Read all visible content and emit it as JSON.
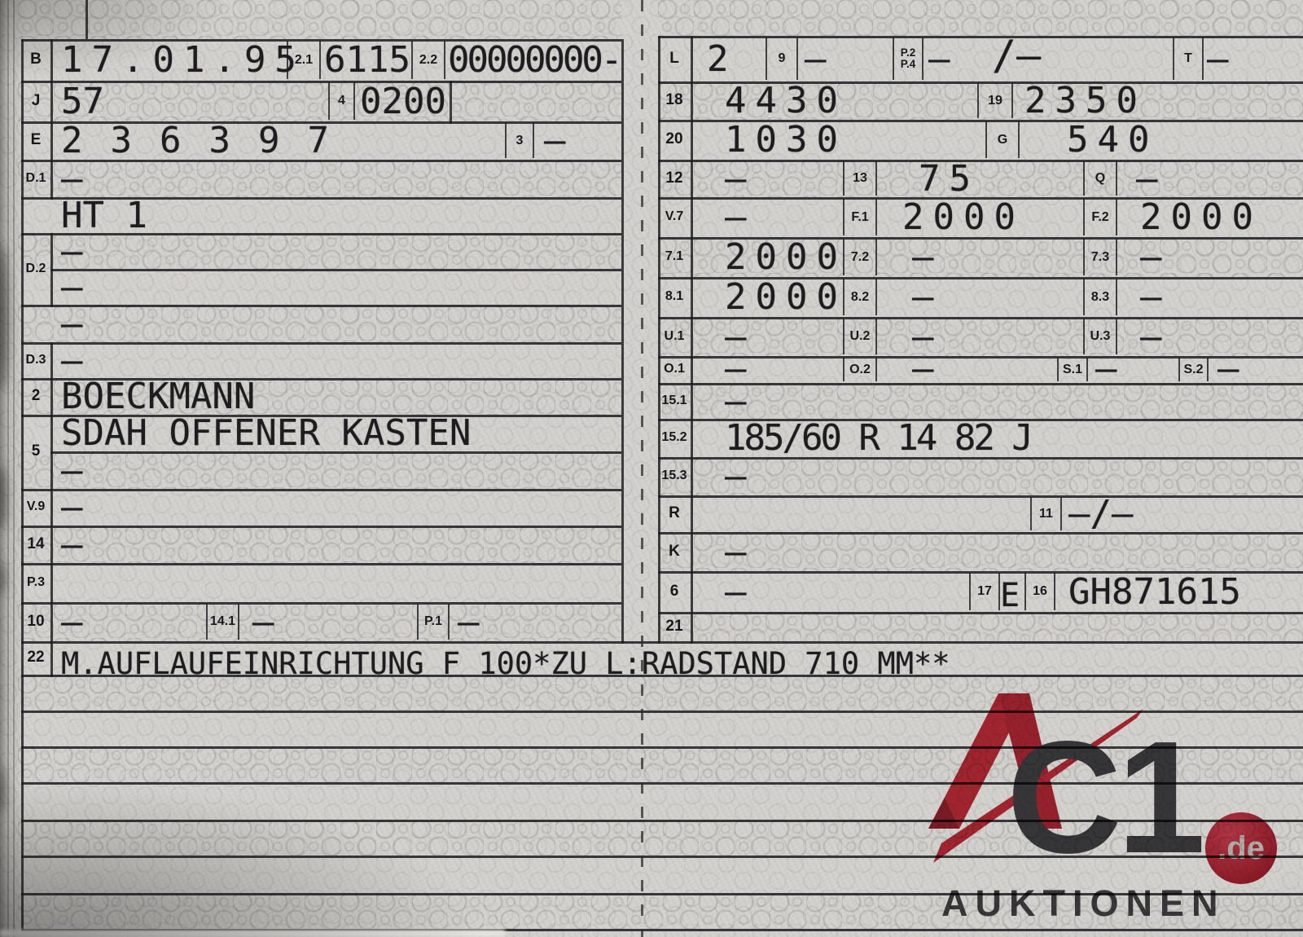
{
  "left": {
    "b": {
      "label": "B",
      "value": "17.01.95"
    },
    "f2_1": {
      "label": "2.1",
      "value": "6115"
    },
    "f2_2": {
      "label": "2.2",
      "value": "00000000-"
    },
    "j": {
      "label": "J",
      "value": "57"
    },
    "f4": {
      "label": "4",
      "value": "0200"
    },
    "e": {
      "label": "E",
      "value": "236397"
    },
    "f3": {
      "label": "3",
      "value": "—"
    },
    "d1": {
      "label": "D.1",
      "value": "—"
    },
    "ht": {
      "value": "HT 1"
    },
    "d2": {
      "label": "D.2",
      "value_row1": "—",
      "value_row2": "—"
    },
    "extra_dash": {
      "value": "—"
    },
    "d3": {
      "label": "D.3",
      "value": "—"
    },
    "f2": {
      "label": "2",
      "value": "BOECKMANN"
    },
    "f5": {
      "label": "5",
      "value_row1": "SDAH OFFENER KASTEN",
      "value_row2": "—"
    },
    "v9": {
      "label": "V.9",
      "value": "—"
    },
    "f14": {
      "label": "14",
      "value": "—"
    },
    "p3": {
      "label": "P.3",
      "value": ""
    },
    "f10": {
      "label": "10",
      "value": "—"
    },
    "f14_1": {
      "label": "14.1",
      "value": "—"
    },
    "p1": {
      "label": "P.1",
      "value": "—"
    },
    "f22": {
      "label": "22",
      "value": "M.AUFLAUFEINRICHTUNG F 100*ZU L:RADSTAND 710 MM**"
    }
  },
  "right": {
    "l": {
      "label": "L",
      "value": "2"
    },
    "f9": {
      "label": "9",
      "value": "—"
    },
    "p2p4": {
      "label_top": "P.2",
      "label_bottom": "P.4",
      "value": "—",
      "extra": "/—"
    },
    "t": {
      "label": "T",
      "value": "—"
    },
    "f18": {
      "label": "18",
      "value": "4430"
    },
    "f19": {
      "label": "19",
      "value": "2350"
    },
    "f20": {
      "label": "20",
      "value": "1030"
    },
    "g": {
      "label": "G",
      "value": "540"
    },
    "f12": {
      "label": "12",
      "value": "—"
    },
    "f13": {
      "label": "13",
      "value": "75"
    },
    "q": {
      "label": "Q",
      "value": "—"
    },
    "v7": {
      "label": "V.7",
      "value": "—"
    },
    "f1": {
      "label": "F.1",
      "value": "2000"
    },
    "f2": {
      "label": "F.2",
      "value": "2000"
    },
    "f71": {
      "label": "7.1",
      "value": "2000"
    },
    "f72": {
      "label": "7.2",
      "value": "—"
    },
    "f73": {
      "label": "7.3",
      "value": "—"
    },
    "f81": {
      "label": "8.1",
      "value": "2000"
    },
    "f82": {
      "label": "8.2",
      "value": "—"
    },
    "f83": {
      "label": "8.3",
      "value": "—"
    },
    "u1": {
      "label": "U.1",
      "value": "—"
    },
    "u2": {
      "label": "U.2",
      "value": "—"
    },
    "u3": {
      "label": "U.3",
      "value": "—"
    },
    "o1": {
      "label": "O.1",
      "value": "—"
    },
    "o2": {
      "label": "O.2",
      "value": "—"
    },
    "s1": {
      "label": "S.1",
      "value": "—"
    },
    "s2": {
      "label": "S.2",
      "value": "—"
    },
    "f151": {
      "label": "15.1",
      "value": "—"
    },
    "f152": {
      "label": "15.2",
      "value": "185/60 R 14 82 J"
    },
    "f153": {
      "label": "15.3",
      "value": "—"
    },
    "r": {
      "label": "R",
      "value": ""
    },
    "f11": {
      "label": "11",
      "value": "—/—"
    },
    "k": {
      "label": "K",
      "value": "—"
    },
    "f6": {
      "label": "6",
      "value": "—"
    },
    "f17": {
      "label": "17",
      "value": "E"
    },
    "f16": {
      "label": "16",
      "value": "GH871615"
    },
    "f21": {
      "label": "21",
      "value": ""
    }
  },
  "watermark": {
    "letter_a": "A",
    "letters_c1": "C1",
    "tld": ".de",
    "subtitle": "AUKTIONEN",
    "accent_red": "#c0202f",
    "logo_dark": "#37373b"
  },
  "colors": {
    "paper": "#d3d2ce",
    "ink": "#1d1d20",
    "line": "#1c1c1f"
  }
}
